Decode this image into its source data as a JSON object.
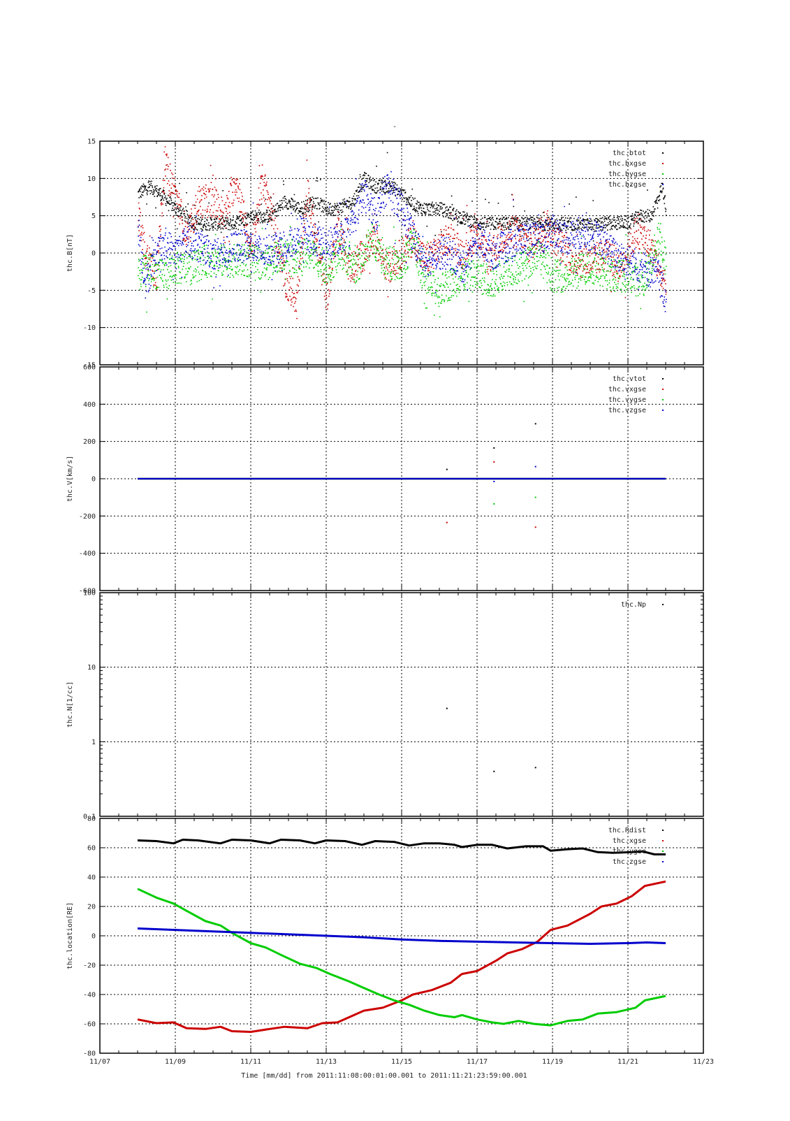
{
  "figure": {
    "title": "-",
    "x_axis_title": "Time [mm/dd]  from 2011:11:08:00:01:00.001  to  2011:11:21:23:59:00.001",
    "x_ticks": [
      "11/07",
      "11/09",
      "11/11",
      "11/13",
      "11/15",
      "11/17",
      "11/19",
      "11/21",
      "11/23"
    ]
  },
  "colors": {
    "black": "#000000",
    "red": "#cc0000",
    "green": "#00cc00",
    "blue": "#0000cc"
  },
  "chart_data": [
    {
      "type": "scatter",
      "ylabel": "thc.B[nT]",
      "ylim": [
        -15,
        15
      ],
      "yticks": [
        "15",
        "10",
        "5",
        "0",
        "-5",
        "-10",
        "-15"
      ],
      "ytick_values": [
        15,
        10,
        5,
        0,
        -5,
        -10,
        -15
      ],
      "xlim_days": [
        7,
        23
      ],
      "grid": true,
      "legend_position": "top-right",
      "series": [
        {
          "name": "thc.btot",
          "color": "#000000",
          "x": [
            8.0,
            8.3,
            8.6,
            9.0,
            9.5,
            10.0,
            10.5,
            11.0,
            11.5,
            11.9,
            12.3,
            12.7,
            13.0,
            13.3,
            13.7,
            14.0,
            14.3,
            14.7,
            15.0,
            15.2,
            15.5,
            16.0,
            16.5,
            17.0,
            17.5,
            18.0,
            18.5,
            19.0,
            19.5,
            20.0,
            20.5,
            21.0,
            21.3,
            21.6,
            21.9,
            22.0
          ],
          "y": [
            8,
            9,
            8,
            6,
            4,
            4,
            4,
            5,
            5,
            7,
            6,
            7,
            6,
            6,
            7,
            10,
            9,
            9,
            8,
            7,
            6,
            6,
            5,
            4,
            4,
            4,
            4,
            4,
            4,
            3.8,
            4,
            4.2,
            5,
            5,
            9,
            6
          ]
        },
        {
          "name": "thc.bxgse",
          "color": "#cc0000",
          "x": [
            8.0,
            8.2,
            8.5,
            8.7,
            9.0,
            9.3,
            9.6,
            10.0,
            10.3,
            10.6,
            11.0,
            11.3,
            11.6,
            11.9,
            12.2,
            12.5,
            12.8,
            13.0,
            13.3,
            13.6,
            14.0,
            14.3,
            14.6,
            15.0,
            15.3,
            15.6,
            16.0,
            16.3,
            16.6,
            17.0,
            17.3,
            17.6,
            18.0,
            18.4,
            18.8,
            19.2,
            19.6,
            20.0,
            20.4,
            20.8,
            21.2,
            21.6,
            22.0
          ],
          "y": [
            5,
            0,
            -3,
            12,
            8,
            2,
            7,
            7,
            5,
            10,
            0,
            10,
            4,
            -4,
            -6,
            8,
            0,
            -6,
            4,
            -2,
            0,
            2,
            -2,
            0,
            2,
            -1,
            1,
            2,
            0,
            3,
            -1,
            2,
            3,
            1,
            4,
            1,
            -1,
            -1,
            0,
            -2,
            3,
            1,
            -5
          ]
        },
        {
          "name": "thc.bygse",
          "color": "#00cc00",
          "x": [
            8.0,
            8.3,
            8.6,
            9.0,
            9.4,
            9.8,
            10.2,
            10.6,
            11.0,
            11.4,
            11.8,
            12.2,
            12.6,
            13.0,
            13.4,
            13.8,
            14.2,
            14.6,
            15.0,
            15.3,
            15.6,
            16.0,
            16.3,
            16.6,
            17.0,
            17.4,
            17.8,
            18.2,
            18.6,
            19.0,
            19.4,
            19.8,
            20.2,
            20.6,
            21.0,
            21.4,
            21.8,
            22.0
          ],
          "y": [
            -3,
            -2,
            -3,
            -2,
            -2,
            -1,
            -1,
            -1,
            -1,
            -1.5,
            0,
            -0.5,
            0,
            -2,
            0,
            -2,
            2,
            -1,
            -2,
            2,
            -4,
            -5,
            -4,
            -3,
            -3,
            -4,
            -2,
            -2,
            0,
            -3,
            -3,
            -2,
            -2,
            -3,
            -3,
            -4,
            2,
            -1
          ]
        },
        {
          "name": "thc.bzgse",
          "color": "#0000cc",
          "x": [
            8.0,
            8.2,
            8.5,
            8.8,
            9.0,
            9.3,
            9.6,
            10.0,
            10.3,
            10.6,
            11.0,
            11.3,
            11.6,
            12.0,
            12.3,
            12.6,
            13.0,
            13.3,
            13.6,
            14.0,
            14.3,
            14.6,
            15.0,
            15.3,
            15.6,
            16.0,
            16.3,
            16.6,
            17.0,
            17.4,
            17.8,
            18.2,
            18.6,
            19.0,
            19.4,
            19.8,
            20.2,
            20.6,
            21.0,
            21.4,
            21.8,
            22.0
          ],
          "y": [
            3,
            -4,
            0,
            1,
            0,
            2,
            1,
            0,
            0,
            1,
            1,
            0,
            1,
            1,
            3,
            2,
            1,
            2,
            3,
            8,
            5,
            9,
            6,
            2,
            -1,
            0,
            0,
            -2,
            2,
            0,
            1,
            2,
            2,
            3,
            2,
            3,
            2,
            0,
            -1,
            -2,
            -3,
            -6
          ]
        }
      ]
    },
    {
      "type": "scatter",
      "ylabel": "thc.V[km/s]",
      "ylim": [
        -600,
        600
      ],
      "yticks": [
        "600",
        "400",
        "200",
        "0",
        "-200",
        "-400",
        "-600"
      ],
      "ytick_values": [
        600,
        400,
        200,
        0,
        -200,
        -400,
        -600
      ],
      "xlim_days": [
        7,
        23
      ],
      "grid": true,
      "legend_position": "top-right",
      "series": [
        {
          "name": "thc.vtot",
          "color": "#000000",
          "x": [
            8.0,
            22.0,
            16.2,
            17.45,
            18.55
          ],
          "y": [
            0,
            0,
            50,
            165,
            295
          ]
        },
        {
          "name": "thc.vxgse",
          "color": "#cc0000",
          "x": [
            8.0,
            22.0,
            16.2,
            17.45,
            18.55
          ],
          "y": [
            0,
            0,
            -235,
            90,
            -260
          ]
        },
        {
          "name": "thc.vygse",
          "color": "#00cc00",
          "x": [
            8.0,
            22.0,
            17.45,
            18.55
          ],
          "y": [
            0,
            0,
            -135,
            -100
          ]
        },
        {
          "name": "thc.vzgse",
          "color": "#0000cc",
          "x": [
            8.0,
            22.0,
            17.45,
            18.55
          ],
          "y": [
            0,
            0,
            -15,
            65
          ]
        }
      ]
    },
    {
      "type": "scatter",
      "ylabel": "thc.N[1/cc]",
      "yscale": "log",
      "ylim": [
        0.1,
        100
      ],
      "yticks": [
        "100",
        "10",
        "1",
        "0.1"
      ],
      "ytick_values": [
        100,
        10,
        1,
        0.1
      ],
      "xlim_days": [
        7,
        23
      ],
      "grid": true,
      "legend_position": "top-right",
      "series": [
        {
          "name": "thc.Np",
          "color": "#000000",
          "x": [
            16.2,
            17.45,
            18.55
          ],
          "y": [
            2.8,
            0.4,
            0.45
          ]
        }
      ]
    },
    {
      "type": "line",
      "ylabel": "thc.location[RE]",
      "ylim": [
        -80,
        80
      ],
      "yticks": [
        "80",
        "60",
        "40",
        "20",
        "0",
        "-20",
        "-40",
        "-60",
        "-80"
      ],
      "ytick_values": [
        80,
        60,
        40,
        20,
        0,
        -20,
        -40,
        -60,
        -80
      ],
      "xlim_days": [
        7,
        23
      ],
      "grid": true,
      "legend_position": "top-right",
      "series": [
        {
          "name": "thc.Rdist",
          "color": "#000000",
          "x": [
            8.0,
            8.5,
            8.95,
            9.2,
            9.6,
            10.2,
            10.5,
            11.0,
            11.5,
            11.8,
            12.3,
            12.7,
            13.0,
            13.5,
            13.95,
            14.3,
            14.8,
            15.2,
            15.6,
            16.0,
            16.4,
            16.6,
            17.0,
            17.4,
            17.8,
            18.3,
            18.75,
            18.95,
            19.4,
            19.8,
            20.2,
            20.6,
            21.1,
            21.4,
            21.7,
            22.0
          ],
          "y": [
            65,
            64.5,
            63,
            65.5,
            65,
            63,
            65.5,
            65,
            63,
            65.5,
            65,
            63,
            65,
            64.5,
            62,
            64.5,
            64,
            61.5,
            63,
            63,
            62,
            60.5,
            62,
            62,
            59.5,
            61,
            61,
            58,
            59,
            59.5,
            57,
            56.5,
            57,
            57.5,
            55.5,
            55.5
          ]
        },
        {
          "name": "thc.xgse",
          "color": "#cc0000",
          "x": [
            8.0,
            8.5,
            8.95,
            9.3,
            9.8,
            10.2,
            10.5,
            11.0,
            11.5,
            11.9,
            12.5,
            12.9,
            13.3,
            14.0,
            14.5,
            15.0,
            15.3,
            15.8,
            16.3,
            16.6,
            17.0,
            17.5,
            17.8,
            18.2,
            18.6,
            18.95,
            19.4,
            20.0,
            20.3,
            20.7,
            21.1,
            21.45,
            22.0
          ],
          "y": [
            -57,
            -59.5,
            -59,
            -63,
            -63.5,
            -62,
            -65,
            -65.5,
            -63.5,
            -62,
            -63,
            -59.5,
            -59,
            -51,
            -49,
            -44,
            -40,
            -37,
            -32,
            -26,
            -24,
            -17,
            -12,
            -9,
            -4,
            4,
            7,
            15,
            20,
            22,
            27,
            34,
            37
          ]
        },
        {
          "name": "thc.ygse",
          "color": "#00cc00",
          "x": [
            8.0,
            8.5,
            8.95,
            9.3,
            9.8,
            10.2,
            10.5,
            11.0,
            11.4,
            11.8,
            12.3,
            12.75,
            13.1,
            13.6,
            13.95,
            14.4,
            14.8,
            15.2,
            15.6,
            16.0,
            16.4,
            16.6,
            17.0,
            17.4,
            17.7,
            18.1,
            18.5,
            18.95,
            19.4,
            19.8,
            20.2,
            20.7,
            21.2,
            21.45,
            22.0
          ],
          "y": [
            32,
            26,
            22,
            17,
            10,
            7,
            2,
            -5,
            -8,
            -13,
            -19,
            -22,
            -26,
            -31,
            -35,
            -40,
            -44,
            -47,
            -51,
            -54,
            -55.5,
            -54,
            -57,
            -59,
            -60,
            -58,
            -60,
            -61,
            -58,
            -57,
            -53,
            -52,
            -49,
            -44,
            -41
          ]
        },
        {
          "name": "thc.zgse",
          "color": "#0000cc",
          "x": [
            8.0,
            9.0,
            10.0,
            11.0,
            12.0,
            13.0,
            14.0,
            15.0,
            16.0,
            17.0,
            18.0,
            19.0,
            20.0,
            21.0,
            21.5,
            22.0
          ],
          "y": [
            5,
            4,
            3,
            2,
            1,
            0,
            -1,
            -2.5,
            -3.5,
            -4,
            -4.5,
            -5,
            -5.5,
            -5,
            -4.5,
            -5
          ]
        }
      ]
    }
  ]
}
